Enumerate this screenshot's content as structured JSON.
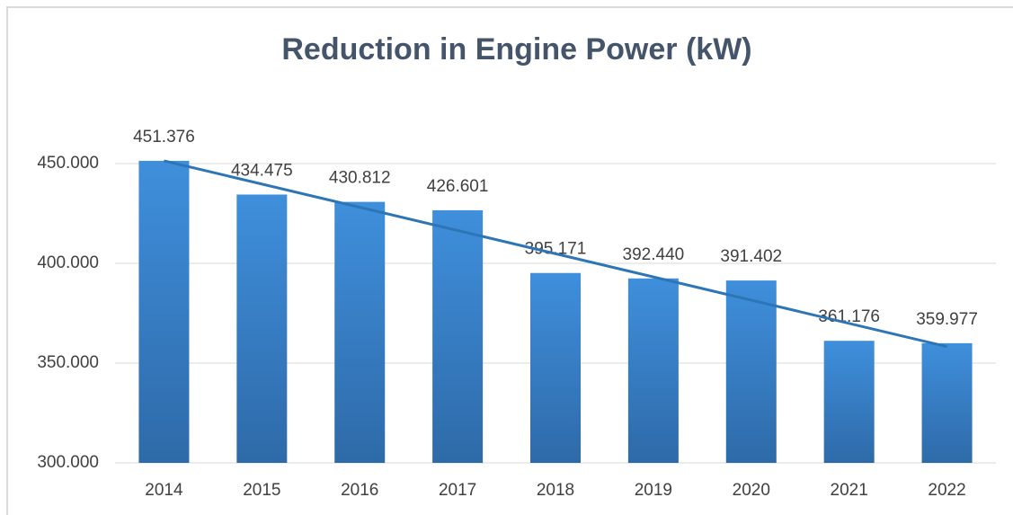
{
  "chart_data": {
    "type": "bar",
    "title": "Reduction in Engine Power (kW)",
    "categories": [
      "2014",
      "2015",
      "2016",
      "2017",
      "2018",
      "2019",
      "2020",
      "2021",
      "2022"
    ],
    "values": [
      451.376,
      434.475,
      430.812,
      426.601,
      395.171,
      392.44,
      391.402,
      361.176,
      359.977
    ],
    "value_labels": [
      "451.376",
      "434.475",
      "430.812",
      "426.601",
      "395.171",
      "392.440",
      "391.402",
      "361.176",
      "359.977"
    ],
    "color": "#3f8fdc",
    "trendline": true,
    "trendline_color": "#2e75b6",
    "ylim": [
      300,
      460
    ],
    "yticks": [
      {
        "value": 300,
        "label": "300.000"
      },
      {
        "value": 350,
        "label": "350.000"
      },
      {
        "value": 400,
        "label": "400.000"
      },
      {
        "value": 450,
        "label": "450.000"
      }
    ],
    "grid": true
  }
}
